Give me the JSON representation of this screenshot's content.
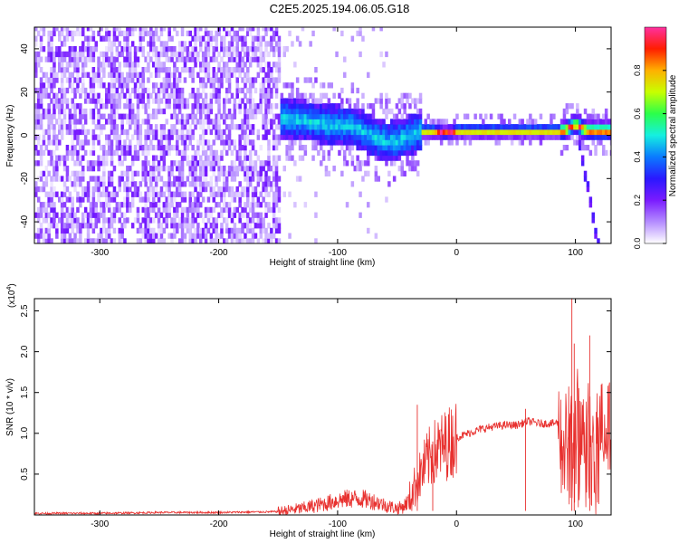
{
  "title": "C2E5.2025.194.06.05.G18",
  "chart_data": [
    {
      "type": "heatmap",
      "xlabel": "Height of straight line (km)",
      "ylabel": "Frequency (Hz)",
      "xlim": [
        -355,
        130
      ],
      "ylim": [
        -50,
        50
      ],
      "x_ticks": [
        -300,
        -200,
        -100,
        0,
        100
      ],
      "y_ticks": [
        -40,
        -20,
        0,
        20,
        40
      ],
      "colorbar": {
        "label": "Normalized spectral amplitude",
        "range": [
          0,
          1
        ],
        "ticks": [
          "0.0",
          "0.2",
          "0.4",
          "0.6",
          "0.8"
        ],
        "colormap": [
          "#ffffff",
          "#b48cff",
          "#7a1bff",
          "#2a18ff",
          "#0a7bff",
          "#15f0e0",
          "#2bff4a",
          "#c8ff00",
          "#ffb000",
          "#ff1e00",
          "#ff30a0"
        ]
      },
      "ridge": {
        "x": [
          -170,
          -150,
          -130,
          -110,
          -90,
          -80,
          -70,
          -60,
          -50,
          -40,
          -30,
          -20,
          -10,
          0,
          20,
          40,
          60,
          80,
          90,
          95,
          100,
          105,
          110,
          120,
          130
        ],
        "y": [
          8,
          7,
          6,
          4,
          3,
          1,
          -2,
          -4,
          -3,
          -1,
          1,
          1,
          0,
          1,
          1,
          1,
          1,
          1,
          1,
          3,
          4,
          2,
          1,
          1,
          1
        ]
      },
      "noise_region_xmax": -150
    },
    {
      "type": "line",
      "xlabel": "Height of straight line (km)",
      "ylabel": "SNR (10 * v/v)",
      "multiplier_label": "(x10",
      "multiplier_exp": "4",
      "xlim": [
        -355,
        130
      ],
      "ylim": [
        0,
        2.65
      ],
      "x_ticks": [
        -300,
        -200,
        -100,
        0,
        100
      ],
      "y_ticks": [
        "0.5",
        "1.0",
        "1.5",
        "2.0",
        "2.5"
      ],
      "y_tick_values": [
        0.5,
        1.0,
        1.5,
        2.0,
        2.5
      ],
      "color": "#e8312f",
      "series": [
        {
          "x": [
            -355,
            -300,
            -250,
            -200,
            -150,
            -130,
            -110,
            -100,
            -90,
            -80,
            -70,
            -60,
            -50,
            -45,
            -40,
            -35,
            -30,
            -25,
            -20,
            -15,
            -10,
            -5,
            0,
            10,
            20,
            30,
            40,
            50,
            55,
            60,
            70,
            80,
            85,
            90,
            95,
            98,
            100,
            103,
            106,
            110,
            113,
            116,
            120,
            125,
            130
          ],
          "y": [
            0.02,
            0.02,
            0.03,
            0.03,
            0.04,
            0.08,
            0.14,
            0.18,
            0.2,
            0.2,
            0.17,
            0.12,
            0.08,
            0.1,
            0.18,
            0.35,
            0.5,
            0.65,
            0.75,
            0.8,
            0.85,
            0.9,
            0.95,
            1.0,
            1.05,
            1.08,
            1.1,
            1.1,
            1.12,
            1.15,
            1.12,
            1.12,
            1.13,
            1.0,
            1.2,
            0.8,
            1.1,
            1.4,
            0.9,
            1.2,
            1.25,
            1.15,
            1.1,
            1.1,
            1.1
          ]
        }
      ],
      "annotations_peaks": [
        {
          "x": -33,
          "y": 1.35
        },
        {
          "x": -20,
          "y": 0.9
        },
        {
          "x": 58,
          "y": 1.3
        },
        {
          "x": 97,
          "y": 2.65
        },
        {
          "x": 99,
          "y": 2.1
        },
        {
          "x": 112,
          "y": 2.2
        }
      ]
    }
  ]
}
